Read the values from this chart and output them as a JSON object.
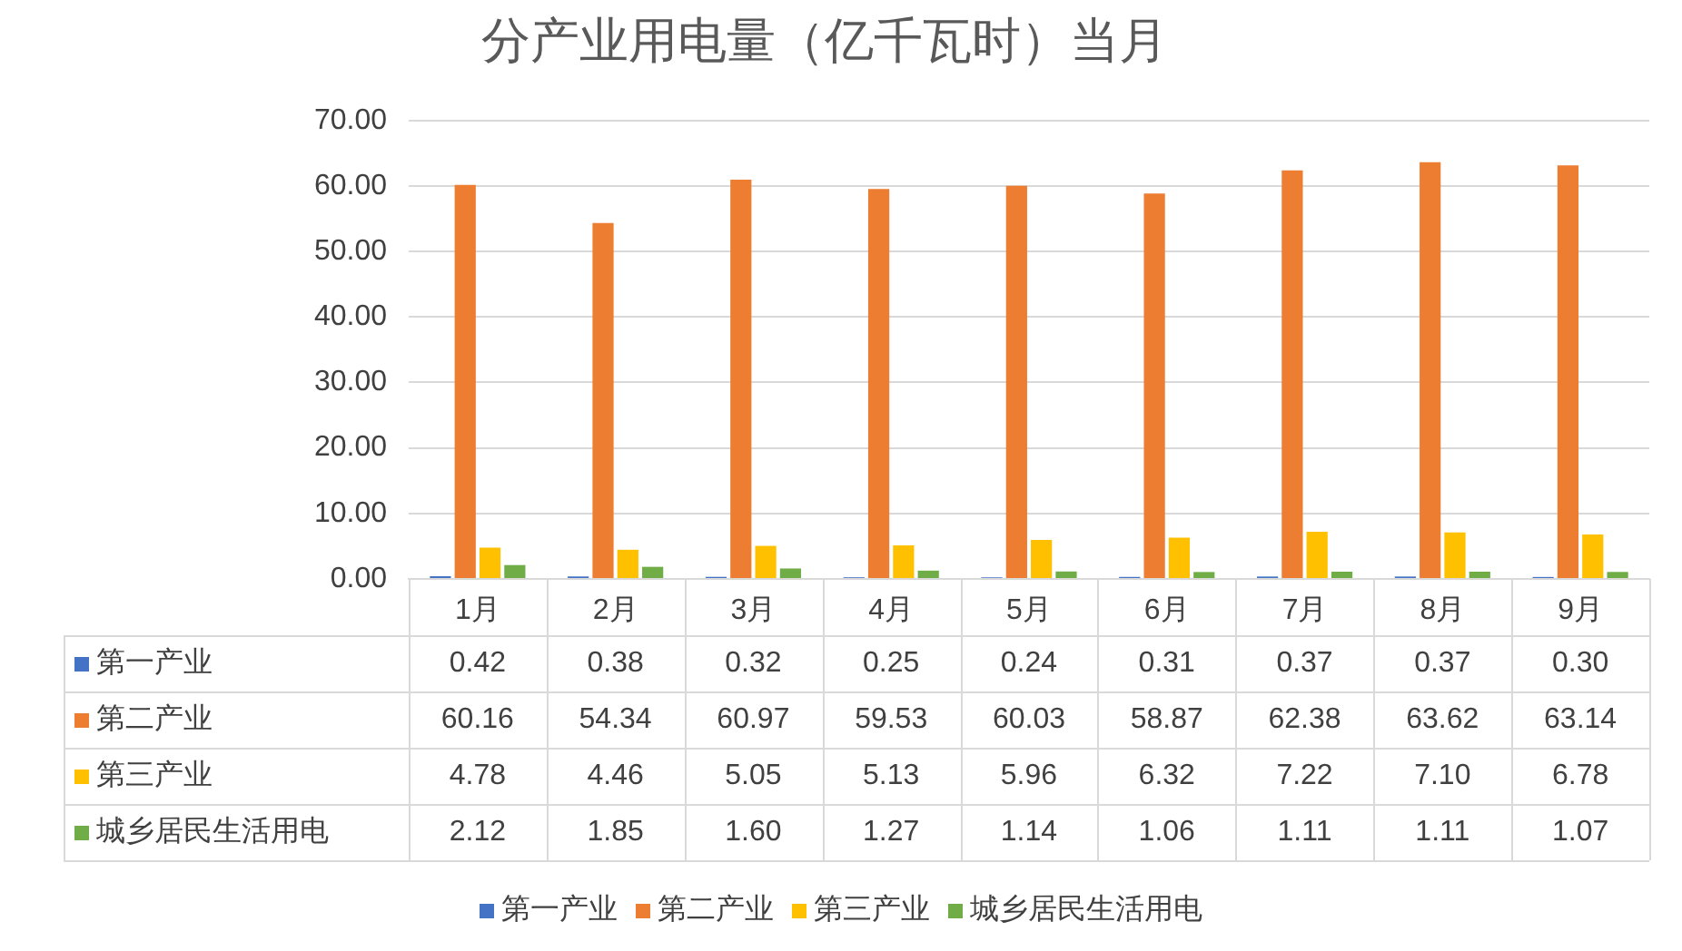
{
  "chart_data": {
    "type": "bar",
    "title": "分产业用电量（亿千瓦时）当月",
    "categories": [
      "1月",
      "2月",
      "3月",
      "4月",
      "5月",
      "6月",
      "7月",
      "8月",
      "9月"
    ],
    "series": [
      {
        "name": "第一产业",
        "color": "#4472c4",
        "values": [
          0.42,
          0.38,
          0.32,
          0.25,
          0.24,
          0.31,
          0.37,
          0.37,
          0.3
        ],
        "value_labels": [
          "0.42",
          "0.38",
          "0.32",
          "0.25",
          "0.24",
          "0.31",
          "0.37",
          "0.37",
          "0.30"
        ]
      },
      {
        "name": "第二产业",
        "color": "#ed7d31",
        "values": [
          60.16,
          54.34,
          60.97,
          59.53,
          60.03,
          58.87,
          62.38,
          63.62,
          63.14
        ],
        "value_labels": [
          "60.16",
          "54.34",
          "60.97",
          "59.53",
          "60.03",
          "58.87",
          "62.38",
          "63.62",
          "63.14"
        ]
      },
      {
        "name": "第三产业",
        "color": "#ffc000",
        "values": [
          4.78,
          4.46,
          5.05,
          5.13,
          5.96,
          6.32,
          7.22,
          7.1,
          6.78
        ],
        "value_labels": [
          "4.78",
          "4.46",
          "5.05",
          "5.13",
          "5.96",
          "6.32",
          "7.22",
          "7.10",
          "6.78"
        ]
      },
      {
        "name": "城乡居民生活用电",
        "color": "#70ad47",
        "values": [
          2.12,
          1.85,
          1.6,
          1.27,
          1.14,
          1.06,
          1.11,
          1.11,
          1.07
        ],
        "value_labels": [
          "2.12",
          "1.85",
          "1.60",
          "1.27",
          "1.14",
          "1.06",
          "1.11",
          "1.11",
          "1.07"
        ]
      }
    ],
    "ylim": [
      0,
      70
    ],
    "yticks": [
      {
        "value": 0,
        "label": "0.00"
      },
      {
        "value": 10,
        "label": "10.00"
      },
      {
        "value": 20,
        "label": "20.00"
      },
      {
        "value": 30,
        "label": "30.00"
      },
      {
        "value": 40,
        "label": "40.00"
      },
      {
        "value": 50,
        "label": "50.00"
      },
      {
        "value": 60,
        "label": "60.00"
      },
      {
        "value": 70,
        "label": "70.00"
      }
    ],
    "grid": "y",
    "legend": "bottom"
  }
}
